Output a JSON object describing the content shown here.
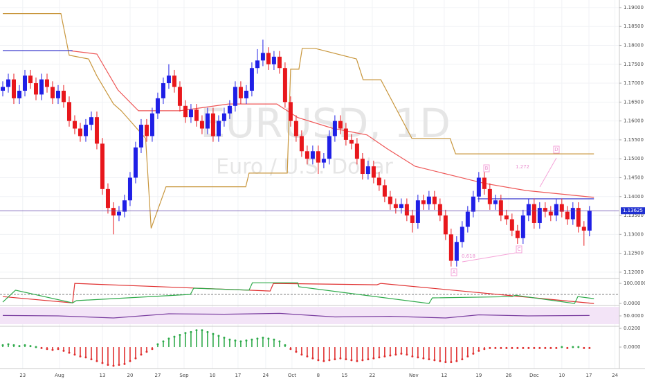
{
  "chart_data": [
    {
      "type": "candlestick",
      "title": "EURUSD, 1D",
      "subtitle": "Euro / U.S. Dollar",
      "up_color": "#1f1fe6",
      "down_color": "#e8171c",
      "open": [
        1.168,
        1.169,
        1.171,
        1.166,
        1.168,
        1.172,
        1.17,
        1.167,
        1.171,
        1.169,
        1.166,
        1.168,
        1.165,
        1.16,
        1.158,
        1.156,
        1.159,
        1.161,
        1.154,
        1.142,
        1.137,
        1.135,
        1.136,
        1.139,
        1.145,
        1.153,
        1.159,
        1.156,
        1.162,
        1.166,
        1.17,
        1.172,
        1.169,
        1.164,
        1.161,
        1.163,
        1.16,
        1.158,
        1.162,
        1.156,
        1.16,
        1.162,
        1.164,
        1.169,
        1.166,
        1.168,
        1.174,
        1.176,
        1.178,
        1.175,
        1.177,
        1.174,
        1.165,
        1.16,
        1.156,
        1.152,
        1.15,
        1.152,
        1.149,
        1.15,
        1.156,
        1.16,
        1.158,
        1.155,
        1.154,
        1.15,
        1.146,
        1.148,
        1.145,
        1.143,
        1.14,
        1.138,
        1.137,
        1.138,
        1.135,
        1.133,
        1.139,
        1.138,
        1.14,
        1.138,
        1.135,
        1.13,
        1.123,
        1.128,
        1.132,
        1.136,
        1.14,
        1.145,
        1.142,
        1.138,
        1.139,
        1.135,
        1.134,
        1.131,
        1.129,
        1.135,
        1.138,
        1.133,
        1.137,
        1.136,
        1.135,
        1.138,
        1.136,
        1.134,
        1.137,
        1.132,
        1.131
      ],
      "high": [
        1.1705,
        1.1725,
        1.1725,
        1.1695,
        1.1735,
        1.1735,
        1.1715,
        1.1725,
        1.1725,
        1.1705,
        1.1695,
        1.1695,
        1.1665,
        1.1615,
        1.1595,
        1.1605,
        1.1625,
        1.1625,
        1.1555,
        1.1435,
        1.1385,
        1.1375,
        1.1405,
        1.1465,
        1.1545,
        1.1605,
        1.1605,
        1.1635,
        1.1675,
        1.1715,
        1.175,
        1.1735,
        1.1705,
        1.1655,
        1.1645,
        1.1645,
        1.1615,
        1.1635,
        1.1635,
        1.1615,
        1.1635,
        1.1655,
        1.1705,
        1.1705,
        1.1695,
        1.1755,
        1.179,
        1.1815,
        1.1795,
        1.1785,
        1.1785,
        1.1755,
        1.1665,
        1.1615,
        1.1575,
        1.1535,
        1.1535,
        1.1535,
        1.1515,
        1.1575,
        1.1615,
        1.1615,
        1.1595,
        1.1565,
        1.1555,
        1.1515,
        1.1495,
        1.1495,
        1.1465,
        1.1445,
        1.1415,
        1.1395,
        1.1395,
        1.1395,
        1.1365,
        1.1405,
        1.1405,
        1.1415,
        1.1415,
        1.1395,
        1.1365,
        1.1315,
        1.1295,
        1.1335,
        1.1375,
        1.1415,
        1.1465,
        1.1465,
        1.1435,
        1.1405,
        1.1405,
        1.1365,
        1.1355,
        1.1325,
        1.1365,
        1.1395,
        1.1395,
        1.1385,
        1.1385,
        1.1375,
        1.1395,
        1.1395,
        1.1375,
        1.1385,
        1.1385,
        1.1335,
        1.1375
      ],
      "low": [
        1.1665,
        1.1675,
        1.1645,
        1.1645,
        1.1665,
        1.1685,
        1.1655,
        1.1655,
        1.1675,
        1.1645,
        1.1645,
        1.1635,
        1.1585,
        1.1565,
        1.1545,
        1.1545,
        1.1575,
        1.1525,
        1.1405,
        1.1355,
        1.13,
        1.1335,
        1.1345,
        1.1375,
        1.1435,
        1.1515,
        1.1545,
        1.1545,
        1.1605,
        1.1645,
        1.1685,
        1.1675,
        1.1625,
        1.1595,
        1.1595,
        1.1585,
        1.1565,
        1.1565,
        1.1545,
        1.1545,
        1.1585,
        1.1605,
        1.1625,
        1.1645,
        1.1645,
        1.1665,
        1.1725,
        1.1745,
        1.1735,
        1.1735,
        1.1725,
        1.1635,
        1.1585,
        1.1545,
        1.1505,
        1.1485,
        1.1485,
        1.146,
        1.1475,
        1.1485,
        1.1545,
        1.1565,
        1.1535,
        1.1525,
        1.1485,
        1.1445,
        1.1445,
        1.1435,
        1.1415,
        1.1385,
        1.1365,
        1.1355,
        1.1355,
        1.1335,
        1.1305,
        1.1315,
        1.1365,
        1.1365,
        1.1365,
        1.1335,
        1.1285,
        1.1215,
        1.1215,
        1.1265,
        1.1305,
        1.1345,
        1.1385,
        1.1405,
        1.1365,
        1.1365,
        1.1335,
        1.1325,
        1.1295,
        1.1275,
        1.1275,
        1.1335,
        1.1315,
        1.1315,
        1.1345,
        1.1335,
        1.1335,
        1.1345,
        1.1325,
        1.1325,
        1.1305,
        1.127,
        1.1295
      ],
      "close": [
        1.169,
        1.171,
        1.166,
        1.168,
        1.172,
        1.17,
        1.167,
        1.171,
        1.169,
        1.166,
        1.168,
        1.165,
        1.16,
        1.158,
        1.156,
        1.159,
        1.161,
        1.154,
        1.142,
        1.137,
        1.135,
        1.136,
        1.139,
        1.145,
        1.153,
        1.159,
        1.156,
        1.162,
        1.166,
        1.17,
        1.172,
        1.169,
        1.164,
        1.161,
        1.163,
        1.16,
        1.158,
        1.162,
        1.156,
        1.16,
        1.162,
        1.164,
        1.169,
        1.166,
        1.168,
        1.174,
        1.176,
        1.178,
        1.175,
        1.177,
        1.174,
        1.165,
        1.16,
        1.156,
        1.152,
        1.15,
        1.152,
        1.149,
        1.15,
        1.156,
        1.16,
        1.158,
        1.155,
        1.154,
        1.15,
        1.146,
        1.148,
        1.145,
        1.143,
        1.14,
        1.138,
        1.137,
        1.138,
        1.135,
        1.133,
        1.139,
        1.138,
        1.14,
        1.138,
        1.135,
        1.13,
        1.123,
        1.128,
        1.132,
        1.136,
        1.14,
        1.145,
        1.142,
        1.138,
        1.139,
        1.135,
        1.134,
        1.131,
        1.129,
        1.135,
        1.138,
        1.133,
        1.137,
        1.136,
        1.135,
        1.138,
        1.136,
        1.134,
        1.137,
        1.132,
        1.131,
        1.13625
      ],
      "lines": [
        {
          "color": "#c8963c",
          "x": [
            0,
            10.5,
            12,
            15.5,
            17,
            20,
            21.4,
            25.8,
            26.8,
            29.5,
            43.9,
            44.5,
            51.4,
            52,
            53.5,
            54.1,
            56.4,
            63.9,
            65.1,
            68.3,
            73.9,
            80.8,
            81.8,
            106.8
          ],
          "values": [
            1.1884,
            1.1884,
            1.1774,
            1.1764,
            1.1719,
            1.1645,
            1.1627,
            1.1554,
            1.1316,
            1.1426,
            1.1426,
            1.1462,
            1.1462,
            1.1737,
            1.1737,
            1.1792,
            1.1792,
            1.1764,
            1.1709,
            1.1709,
            1.1554,
            1.1554,
            1.1513,
            1.1513
          ]
        },
        {
          "color": "#ee5555",
          "x": [
            12,
            17,
            20.8,
            24.5,
            32,
            40.8,
            49.5,
            53.3,
            59.5,
            65.8,
            69.5,
            74.5,
            82,
            87,
            94.5,
            106.8
          ],
          "values": [
            1.1786,
            1.1777,
            1.1682,
            1.1627,
            1.1627,
            1.1645,
            1.1645,
            1.1609,
            1.1581,
            1.1563,
            1.1526,
            1.148,
            1.1453,
            1.1435,
            1.1416,
            1.1398
          ]
        },
        {
          "color": "#3333cc",
          "x": [
            0,
            12.6,
            50,
            85.8,
            106.8
          ],
          "values": [
            1.1786,
            1.1786,
            null,
            1.1394,
            1.1394
          ]
        }
      ],
      "last_price": {
        "value": 1.13625,
        "label": "1.13625"
      },
      "annotations": [
        "A",
        "B",
        "C",
        "D",
        "1.272",
        "0.618"
      ],
      "xlim": [
        -0.5,
        111.4
      ],
      "xticks": [
        {
          "value": 3.6,
          "label": "23"
        },
        {
          "value": 10.25,
          "label": "Aug"
        },
        {
          "value": 18,
          "label": "13"
        },
        {
          "value": 23,
          "label": "20"
        },
        {
          "value": 28,
          "label": "27"
        },
        {
          "value": 32.75,
          "label": "Sep"
        },
        {
          "value": 37.9,
          "label": "10"
        },
        {
          "value": 42.5,
          "label": "17"
        },
        {
          "value": 47.5,
          "label": "24"
        },
        {
          "value": 52.25,
          "label": "Oct"
        },
        {
          "value": 57,
          "label": "8"
        },
        {
          "value": 61.75,
          "label": "15"
        },
        {
          "value": 66.75,
          "label": "22"
        },
        {
          "value": 74.25,
          "label": "Nov"
        },
        {
          "value": 79.75,
          "label": "12"
        },
        {
          "value": 86,
          "label": "19"
        },
        {
          "value": 91.4,
          "label": "26"
        },
        {
          "value": 96,
          "label": "Dec"
        },
        {
          "value": 101,
          "label": "10"
        },
        {
          "value": 105.9,
          "label": "17"
        },
        {
          "value": 110.6,
          "label": "24"
        }
      ],
      "ylim": [
        1.1187,
        1.192
      ],
      "yticks": [
        {
          "value": 1.12,
          "label": "1.12000"
        },
        {
          "value": 1.125,
          "label": "1.12500"
        },
        {
          "value": 1.13,
          "label": "1.13000"
        },
        {
          "value": 1.135,
          "label": "1.13500"
        },
        {
          "value": 1.14,
          "label": "1.14000"
        },
        {
          "value": 1.145,
          "label": "1.14500"
        },
        {
          "value": 1.15,
          "label": "1.15000"
        },
        {
          "value": 1.155,
          "label": "1.15500"
        },
        {
          "value": 1.16,
          "label": "1.16000"
        },
        {
          "value": 1.165,
          "label": "1.16500"
        },
        {
          "value": 1.17,
          "label": "1.17000"
        },
        {
          "value": 1.175,
          "label": "1.17500"
        },
        {
          "value": 1.18,
          "label": "1.18000"
        },
        {
          "value": 1.185,
          "label": "1.18500"
        },
        {
          "value": 1.19,
          "label": "1.19000"
        }
      ],
      "grid": true
    },
    {
      "type": "line",
      "ylim": [
        -10,
        114
      ],
      "yticks": [
        {
          "value": 100,
          "label": "100.0000"
        },
        {
          "value": 0,
          "label": "0.0000"
        }
      ],
      "level": 45,
      "series": [
        {
          "color": "#e03030",
          "x": [
            0,
            12.6,
            13,
            48.3,
            48.9,
            67.6,
            68.3,
            106.8
          ],
          "values": [
            34,
            3,
            100,
            62,
            100,
            93,
            100,
            0
          ]
        },
        {
          "color": "#2eaa4a",
          "x": [
            0,
            2.3,
            12.6,
            13.3,
            33.9,
            34.5,
            44.5,
            45.1,
            53.3,
            53.5,
            77,
            77.6,
            92,
            92.6,
            103.3,
            103.9,
            106.8
          ],
          "values": [
            7,
            66,
            3,
            14,
            45,
            76,
            66,
            103,
            103,
            83,
            0,
            28,
            34,
            41,
            0,
            34,
            24
          ]
        }
      ]
    },
    {
      "type": "line",
      "ylim": [
        0,
        100
      ],
      "yticks": [
        {
          "value": 50,
          "label": "50.0000"
        }
      ],
      "band": [
        10,
        93
      ],
      "series": [
        {
          "color": "#7b3fa0",
          "x": [
            0,
            10,
            20,
            30,
            40,
            50,
            60,
            70,
            80,
            86,
            95,
            106
          ],
          "values": [
            52,
            50,
            40,
            60,
            58,
            62,
            45,
            48,
            40,
            55,
            50,
            52
          ]
        }
      ]
    },
    {
      "type": "bar",
      "ylim": [
        -0.0222,
        0.0215
      ],
      "yticks": [
        {
          "value": 0.02,
          "label": "0.0200"
        },
        {
          "value": 0,
          "label": "0.0000"
        }
      ],
      "up_color": "#2eaa4a",
      "down_color": "#e03030",
      "values": [
        0.002,
        0.003,
        0.002,
        0.001,
        0.002,
        0.001,
        0,
        -0.001,
        -0.002,
        -0.003,
        -0.002,
        -0.004,
        -0.006,
        -0.008,
        -0.01,
        -0.011,
        -0.013,
        -0.015,
        -0.017,
        -0.019,
        -0.02,
        -0.019,
        -0.018,
        -0.015,
        -0.012,
        -0.008,
        -0.005,
        -0.002,
        0.003,
        0.006,
        0.009,
        0.011,
        0.013,
        0.015,
        0.016,
        0.018,
        0.018,
        0.016,
        0.014,
        0.012,
        0.01,
        0.008,
        0.007,
        0.006,
        0.007,
        0.008,
        0.009,
        0.01,
        0.009,
        0.008,
        0.006,
        0.002,
        -0.002,
        -0.005,
        -0.008,
        -0.01,
        -0.012,
        -0.014,
        -0.015,
        -0.014,
        -0.013,
        -0.012,
        -0.013,
        -0.014,
        -0.015,
        -0.014,
        -0.013,
        -0.012,
        -0.011,
        -0.01,
        -0.009,
        -0.008,
        -0.007,
        -0.008,
        -0.01,
        -0.011,
        -0.012,
        -0.013,
        -0.014,
        -0.015,
        -0.016,
        -0.016,
        -0.015,
        -0.013,
        -0.01,
        -0.007,
        -0.004,
        -0.002,
        -0.001,
        -0.001,
        -0.001,
        -0.001,
        -0.001,
        -0.001,
        -0.001,
        -0.001,
        -0.001,
        -0.001,
        -0.001,
        -0.001,
        -0.001,
        0,
        -0.001,
        0,
        0,
        -0.001,
        -0.001
      ]
    }
  ]
}
